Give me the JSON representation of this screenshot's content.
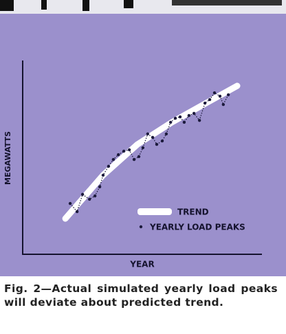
{
  "chart_data": {
    "type": "line",
    "xlabel": "YEAR",
    "ylabel": "MEGAWATTS",
    "xlim": [
      0,
      100
    ],
    "ylim": [
      0,
      100
    ],
    "series": [
      {
        "name": "TREND",
        "color": "#ffffff",
        "x": [
          17.9,
          33.7,
          48.1,
          62.5,
          76.9,
          89.9
        ],
        "values": [
          18.4,
          40.8,
          56.7,
          68.1,
          78.0,
          86.9
        ]
      },
      {
        "name": "YEARLY LOAD PEAKS",
        "color": "#1c1a3c",
        "x": [
          19.9,
          22.8,
          25.1,
          28.0,
          30.3,
          32.3,
          33.7,
          36.0,
          38.0,
          40.1,
          42.4,
          44.7,
          46.7,
          48.7,
          50.4,
          52.4,
          54.5,
          56.2,
          58.5,
          60.2,
          62.0,
          64.0,
          66.0,
          67.7,
          69.7,
          71.8,
          74.1,
          76.4,
          78.4,
          80.4,
          82.7,
          84.1,
          86.2
        ],
        "values": [
          26.2,
          22.0,
          30.9,
          28.4,
          30.1,
          34.8,
          40.8,
          45.4,
          48.9,
          51.4,
          53.2,
          53.9,
          48.9,
          50.4,
          55.0,
          62.1,
          60.3,
          56.7,
          58.5,
          62.1,
          68.1,
          70.2,
          70.9,
          68.1,
          71.6,
          72.7,
          69.1,
          78.0,
          79.8,
          83.3,
          81.6,
          77.3,
          82.3
        ]
      }
    ],
    "caption": "Fig. 2—Actual simulated yearly load peaks will deviate about predicted trend."
  }
}
